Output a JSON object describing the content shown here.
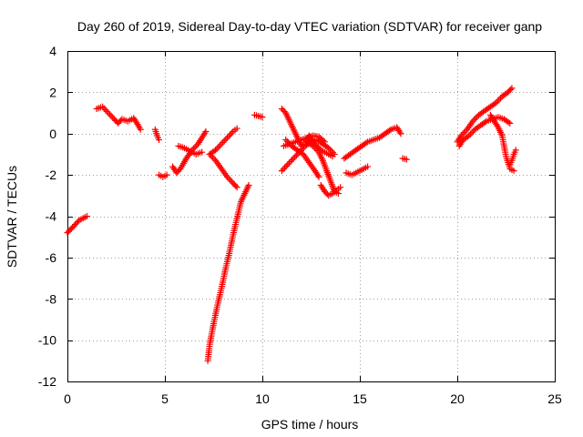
{
  "chart_data": {
    "type": "scatter",
    "title": "Day 260 of 2019, Sidereal Day-to-day VTEC variation (SDTVAR) for receiver ganp",
    "xlabel": "GPS time / hours",
    "ylabel": "SDTVAR / TECUs",
    "xlim": [
      0,
      25
    ],
    "ylim": [
      -12,
      4
    ],
    "x_ticks": [
      "0",
      "5",
      "10",
      "15",
      "20",
      "25"
    ],
    "y_ticks": [
      "4",
      "2",
      "0",
      "-2",
      "-4",
      "-6",
      "-8",
      "-10",
      "-12"
    ],
    "grid": true,
    "marker": "+",
    "color": "#ff0000",
    "tracks": [
      [
        [
          0.0,
          -4.8
        ],
        [
          0.2,
          -4.6
        ],
        [
          0.4,
          -4.4
        ],
        [
          0.6,
          -4.2
        ],
        [
          0.8,
          -4.1
        ],
        [
          1.0,
          -4.0
        ]
      ],
      [
        [
          1.5,
          1.2
        ],
        [
          1.8,
          1.3
        ],
        [
          2.1,
          1.0
        ],
        [
          2.4,
          0.7
        ],
        [
          2.6,
          0.5
        ],
        [
          2.8,
          0.7
        ],
        [
          3.1,
          0.6
        ],
        [
          3.4,
          0.75
        ],
        [
          3.6,
          0.45
        ],
        [
          3.75,
          0.2
        ]
      ],
      [
        [
          4.5,
          0.2
        ],
        [
          4.6,
          -0.1
        ],
        [
          4.7,
          -0.3
        ]
      ],
      [
        [
          4.7,
          -2.0
        ],
        [
          4.9,
          -2.1
        ],
        [
          5.1,
          -2.0
        ]
      ],
      [
        [
          5.4,
          -1.6
        ],
        [
          5.6,
          -1.9
        ],
        [
          5.8,
          -1.7
        ],
        [
          6.1,
          -1.2
        ],
        [
          6.4,
          -0.8
        ],
        [
          6.7,
          -0.5
        ],
        [
          6.9,
          -0.2
        ],
        [
          7.1,
          0.1
        ]
      ],
      [
        [
          5.7,
          -0.6
        ],
        [
          6.0,
          -0.7
        ],
        [
          6.3,
          -0.85
        ],
        [
          6.6,
          -1.0
        ],
        [
          6.9,
          -0.9
        ]
      ],
      [
        [
          7.2,
          -11.0
        ],
        [
          7.3,
          -10.2
        ],
        [
          7.5,
          -9.2
        ],
        [
          7.7,
          -8.3
        ],
        [
          7.9,
          -7.5
        ],
        [
          8.1,
          -6.6
        ],
        [
          8.3,
          -5.8
        ],
        [
          8.5,
          -4.9
        ],
        [
          8.7,
          -4.1
        ],
        [
          8.9,
          -3.3
        ],
        [
          9.1,
          -2.9
        ],
        [
          9.3,
          -2.5
        ]
      ],
      [
        [
          7.3,
          -1.0
        ],
        [
          7.6,
          -0.8
        ],
        [
          7.9,
          -0.5
        ],
        [
          8.2,
          -0.2
        ],
        [
          8.5,
          0.1
        ],
        [
          8.7,
          0.25
        ]
      ],
      [
        [
          7.3,
          -1.0
        ],
        [
          7.6,
          -1.3
        ],
        [
          7.9,
          -1.7
        ],
        [
          8.2,
          -2.1
        ],
        [
          8.5,
          -2.4
        ],
        [
          8.7,
          -2.6
        ]
      ],
      [
        [
          9.6,
          0.9
        ],
        [
          9.8,
          0.85
        ],
        [
          10.0,
          0.8
        ]
      ],
      [
        [
          11.0,
          1.2
        ],
        [
          11.2,
          1.0
        ],
        [
          11.4,
          0.6
        ],
        [
          11.6,
          0.2
        ],
        [
          11.8,
          -0.2
        ],
        [
          12.0,
          -0.6
        ],
        [
          12.2,
          -0.5
        ],
        [
          12.4,
          -0.1
        ],
        [
          12.6,
          -0.4
        ],
        [
          12.8,
          -0.6
        ],
        [
          13.0,
          -0.8
        ],
        [
          13.2,
          -0.9
        ],
        [
          13.4,
          -1.0
        ],
        [
          13.6,
          -1.1
        ]
      ],
      [
        [
          11.0,
          -1.8
        ],
        [
          11.3,
          -1.5
        ],
        [
          11.6,
          -1.2
        ],
        [
          11.9,
          -0.9
        ],
        [
          12.2,
          -0.6
        ],
        [
          12.5,
          -0.4
        ],
        [
          12.8,
          -0.3
        ],
        [
          13.1,
          -0.5
        ],
        [
          13.4,
          -0.7
        ],
        [
          13.7,
          -1.0
        ]
      ],
      [
        [
          11.1,
          -0.6
        ],
        [
          11.4,
          -0.5
        ],
        [
          11.7,
          -0.4
        ],
        [
          12.0,
          -0.3
        ],
        [
          12.3,
          -0.2
        ],
        [
          12.6,
          -0.1
        ],
        [
          12.9,
          -0.15
        ],
        [
          13.2,
          -0.4
        ]
      ],
      [
        [
          11.2,
          -0.3
        ],
        [
          11.5,
          -0.6
        ],
        [
          11.8,
          -0.8
        ],
        [
          12.1,
          -1.0
        ],
        [
          12.4,
          -1.4
        ],
        [
          12.7,
          -1.8
        ],
        [
          12.9,
          -2.1
        ]
      ],
      [
        [
          12.3,
          -0.4
        ],
        [
          12.6,
          -0.6
        ],
        [
          12.9,
          -0.9
        ],
        [
          13.1,
          -1.3
        ],
        [
          13.3,
          -1.8
        ],
        [
          13.5,
          -2.3
        ],
        [
          13.7,
          -2.8
        ],
        [
          13.9,
          -2.9
        ]
      ],
      [
        [
          13.0,
          -2.5
        ],
        [
          13.2,
          -2.8
        ],
        [
          13.4,
          -3.0
        ],
        [
          13.6,
          -2.9
        ],
        [
          13.8,
          -2.75
        ],
        [
          14.0,
          -2.6
        ]
      ],
      [
        [
          14.2,
          -1.2
        ],
        [
          14.5,
          -1.0
        ],
        [
          14.8,
          -0.8
        ],
        [
          15.1,
          -0.6
        ],
        [
          15.4,
          -0.4
        ],
        [
          15.7,
          -0.3
        ],
        [
          16.0,
          -0.2
        ],
        [
          16.3,
          0.0
        ],
        [
          16.6,
          0.2
        ],
        [
          16.9,
          0.3
        ],
        [
          17.1,
          0.0
        ]
      ],
      [
        [
          14.3,
          -1.9
        ],
        [
          14.6,
          -2.0
        ],
        [
          14.9,
          -1.85
        ],
        [
          15.2,
          -1.7
        ],
        [
          15.4,
          -1.6
        ]
      ],
      [
        [
          17.2,
          -1.2
        ],
        [
          17.4,
          -1.25
        ]
      ],
      [
        [
          20.0,
          -0.4
        ],
        [
          20.2,
          -0.1
        ],
        [
          20.5,
          0.2
        ],
        [
          20.8,
          0.6
        ],
        [
          21.1,
          0.9
        ],
        [
          21.4,
          1.1
        ],
        [
          21.7,
          1.3
        ],
        [
          22.0,
          1.5
        ],
        [
          22.3,
          1.8
        ],
        [
          22.6,
          2.0
        ],
        [
          22.8,
          2.2
        ]
      ],
      [
        [
          20.1,
          -0.6
        ],
        [
          20.3,
          -0.3
        ],
        [
          20.6,
          -0.1
        ],
        [
          20.9,
          0.2
        ],
        [
          21.2,
          0.4
        ],
        [
          21.5,
          0.6
        ],
        [
          21.8,
          0.7
        ],
        [
          22.1,
          0.8
        ],
        [
          22.4,
          0.7
        ],
        [
          22.7,
          0.5
        ]
      ],
      [
        [
          21.7,
          0.9
        ],
        [
          21.9,
          0.6
        ],
        [
          22.1,
          0.3
        ],
        [
          22.3,
          -0.1
        ],
        [
          22.4,
          -0.6
        ],
        [
          22.5,
          -1.1
        ],
        [
          22.6,
          -1.4
        ],
        [
          22.7,
          -1.7
        ],
        [
          22.9,
          -1.8
        ]
      ],
      [
        [
          22.7,
          -1.5
        ],
        [
          22.8,
          -1.3
        ],
        [
          22.9,
          -1.0
        ],
        [
          23.0,
          -0.8
        ]
      ]
    ]
  }
}
